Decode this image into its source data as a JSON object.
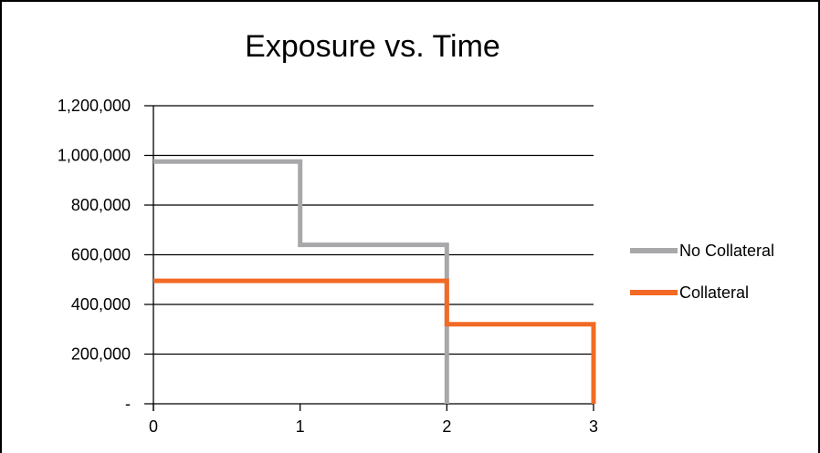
{
  "chart_data": {
    "type": "line",
    "title": "Exposure vs. Time",
    "xlabel": "",
    "ylabel": "",
    "xlim": [
      0,
      3
    ],
    "ylim": [
      0,
      1200000
    ],
    "x_ticks": [
      "0",
      "1",
      "2",
      "3"
    ],
    "y_ticks": [
      {
        "value": 0,
        "label": "-"
      },
      {
        "value": 200000,
        "label": "200,000"
      },
      {
        "value": 400000,
        "label": "400,000"
      },
      {
        "value": 600000,
        "label": "600,000"
      },
      {
        "value": 800000,
        "label": "800,000"
      },
      {
        "value": 1000000,
        "label": "1,000,000"
      },
      {
        "value": 1200000,
        "label": "1,200,000"
      }
    ],
    "grid": "horizontal",
    "legend_position": "right",
    "step": true,
    "series": [
      {
        "name": "No Collateral",
        "color": "#a8a8ab",
        "points": [
          [
            0,
            975000
          ],
          [
            1,
            975000
          ],
          [
            1,
            640000
          ],
          [
            2,
            640000
          ],
          [
            2,
            0
          ]
        ]
      },
      {
        "name": "Collateral",
        "color": "#f26a25",
        "points": [
          [
            0,
            495000
          ],
          [
            2,
            495000
          ],
          [
            2,
            320000
          ],
          [
            3,
            320000
          ],
          [
            3,
            0
          ]
        ]
      }
    ]
  }
}
